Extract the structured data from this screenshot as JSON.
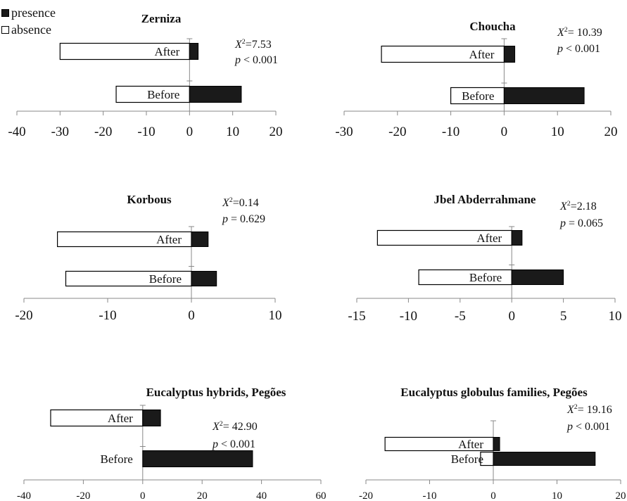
{
  "legend": {
    "presence_label": "presence",
    "absence_label": "absence",
    "presence_color": "#1a1a1a",
    "absence_color": "#ffffff"
  },
  "chart_data": [
    {
      "type": "bar",
      "orientation": "horizontal",
      "title": "Zerniza",
      "categories": [
        "After",
        "Before"
      ],
      "series": [
        {
          "name": "presence",
          "values": [
            2,
            12
          ]
        },
        {
          "name": "absence",
          "values": [
            -30,
            -17
          ]
        }
      ],
      "xlim": [
        -40,
        20
      ],
      "xticks": [
        -40,
        -30,
        -20,
        -10,
        0,
        10,
        20
      ],
      "stat_chi2": "=7.53",
      "stat_p": "< 0.001"
    },
    {
      "type": "bar",
      "orientation": "horizontal",
      "title": "Choucha",
      "categories": [
        "After",
        "Before"
      ],
      "series": [
        {
          "name": "presence",
          "values": [
            2,
            15
          ]
        },
        {
          "name": "absence",
          "values": [
            -23,
            -10
          ]
        }
      ],
      "xlim": [
        -30,
        20
      ],
      "xticks": [
        -30,
        -20,
        -10,
        0,
        10,
        20
      ],
      "stat_chi2": "= 10.39",
      "stat_p": "< 0.001"
    },
    {
      "type": "bar",
      "orientation": "horizontal",
      "title": "Korbous",
      "categories": [
        "After",
        "Before"
      ],
      "series": [
        {
          "name": "presence",
          "values": [
            2,
            3
          ]
        },
        {
          "name": "absence",
          "values": [
            -16,
            -15
          ]
        }
      ],
      "xlim": [
        -20,
        10
      ],
      "xticks": [
        -20,
        -10,
        0,
        10
      ],
      "stat_chi2": "=0.14",
      "stat_p": "= 0.629"
    },
    {
      "type": "bar",
      "orientation": "horizontal",
      "title": "Jbel Abderrahmane",
      "categories": [
        "After",
        "Before"
      ],
      "series": [
        {
          "name": "presence",
          "values": [
            1,
            5
          ]
        },
        {
          "name": "absence",
          "values": [
            -13,
            -9
          ]
        }
      ],
      "xlim": [
        -15,
        10
      ],
      "xticks": [
        -15,
        -10,
        -5,
        0,
        5,
        10
      ],
      "stat_chi2": "=2.18",
      "stat_p": "= 0.065"
    },
    {
      "type": "bar",
      "orientation": "horizontal",
      "title": "Eucalyptus hybrids, Pegões",
      "categories": [
        "After",
        "Before"
      ],
      "series": [
        {
          "name": "presence",
          "values": [
            6,
            37
          ]
        },
        {
          "name": "absence",
          "values": [
            -31,
            0
          ]
        }
      ],
      "xlim": [
        -40,
        60
      ],
      "xticks": [
        -40,
        -20,
        0,
        20,
        40,
        60
      ],
      "stat_chi2": "= 42.90",
      "stat_p": "< 0.001"
    },
    {
      "type": "bar",
      "orientation": "horizontal",
      "title": "Eucalyptus globulus families, Pegões",
      "categories": [
        "After",
        "Before"
      ],
      "series": [
        {
          "name": "presence",
          "values": [
            1,
            16
          ]
        },
        {
          "name": "absence",
          "values": [
            -17,
            -2
          ]
        }
      ],
      "xlim": [
        -20,
        20
      ],
      "xticks": [
        -20,
        -10,
        0,
        10,
        20
      ],
      "stat_chi2": "= 19.16",
      "stat_p": "< 0.001"
    }
  ]
}
